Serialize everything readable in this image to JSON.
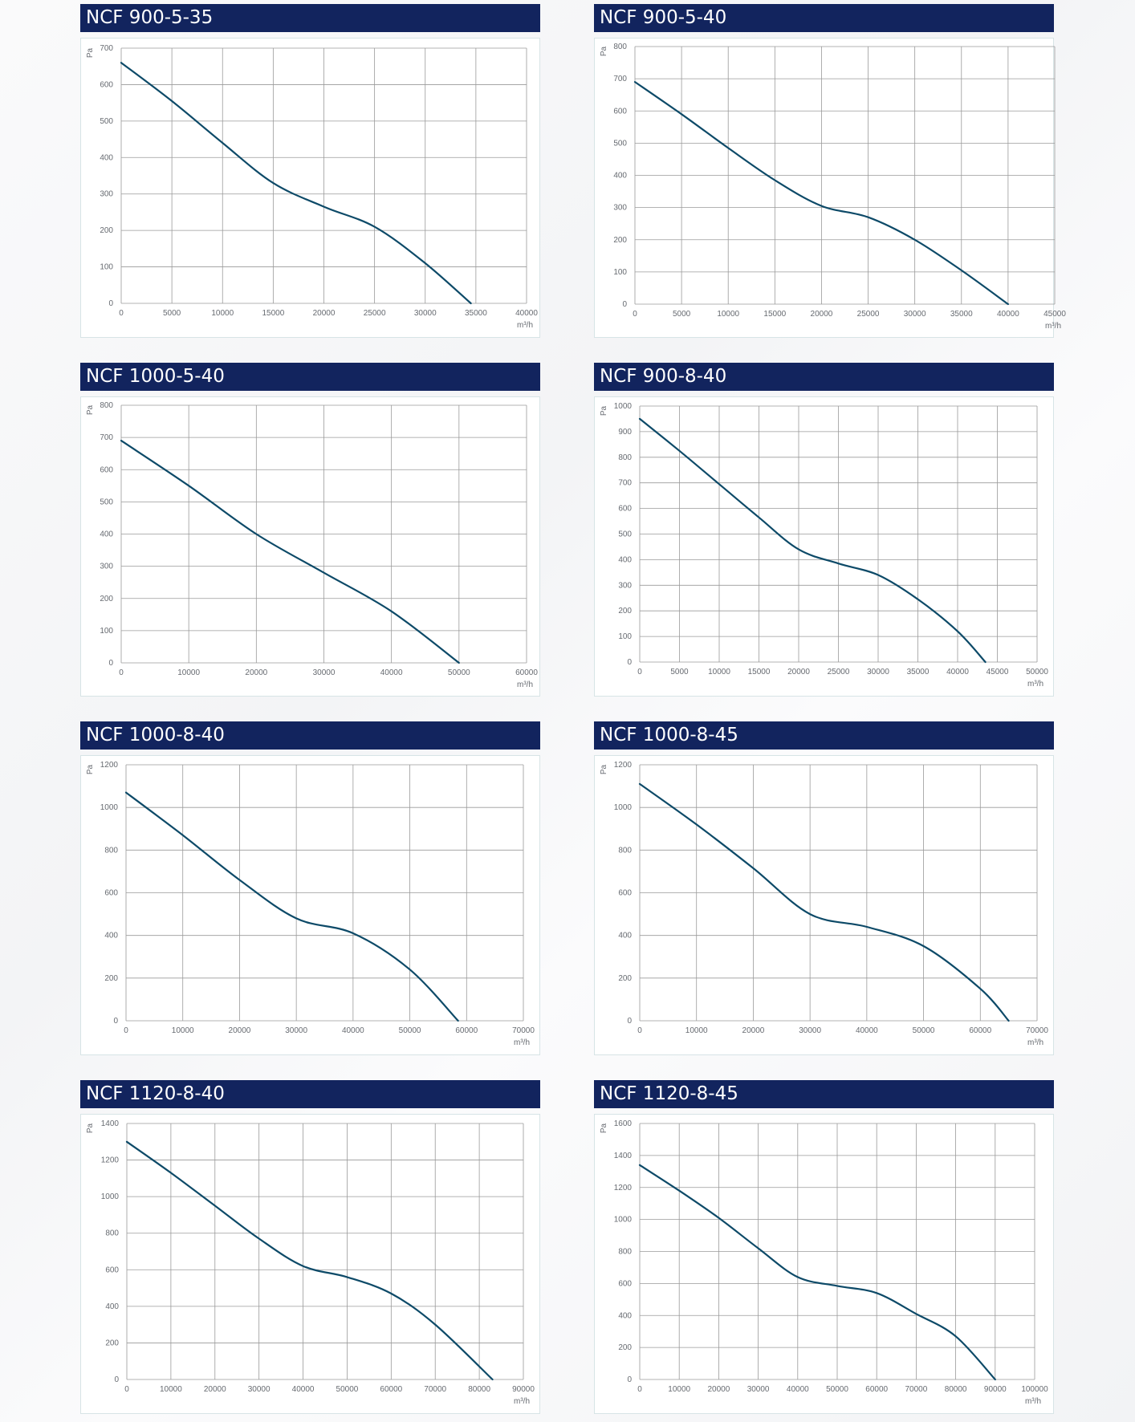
{
  "colors": {
    "header_bg": "#12245e",
    "curve": "#0d4a68",
    "grid": "#9a9a9a",
    "text": "#666a70"
  },
  "chart_data": [
    {
      "type": "line",
      "title": "NCF 900-5-35",
      "xlabel": "m³/h",
      "ylabel": "Pa",
      "xlim": [
        0,
        40000
      ],
      "ylim": [
        0,
        700
      ],
      "xticks": [
        0,
        5000,
        10000,
        15000,
        20000,
        25000,
        30000,
        35000,
        40000
      ],
      "yticks": [
        0,
        100,
        200,
        300,
        400,
        500,
        600,
        700
      ],
      "grid": true,
      "series": [
        {
          "x": [
            0,
            5000,
            10000,
            15000,
            20000,
            25000,
            30000,
            34500
          ],
          "y": [
            660,
            555,
            440,
            330,
            265,
            210,
            110,
            0
          ]
        }
      ]
    },
    {
      "type": "line",
      "title": "NCF 900-5-40",
      "xlabel": "m³/h",
      "ylabel": "Pa",
      "xlim": [
        0,
        45000
      ],
      "ylim": [
        0,
        800
      ],
      "xticks": [
        0,
        5000,
        10000,
        15000,
        20000,
        25000,
        30000,
        35000,
        40000,
        45000
      ],
      "yticks": [
        0,
        100,
        200,
        300,
        400,
        500,
        600,
        700,
        800
      ],
      "grid": true,
      "series": [
        {
          "x": [
            0,
            5000,
            10000,
            15000,
            20000,
            25000,
            30000,
            35000,
            40000
          ],
          "y": [
            690,
            590,
            485,
            385,
            305,
            270,
            200,
            105,
            0
          ]
        }
      ]
    },
    {
      "type": "line",
      "title": "NCF 1000-5-40",
      "xlabel": "m³/h",
      "ylabel": "Pa",
      "xlim": [
        0,
        60000
      ],
      "ylim": [
        0,
        800
      ],
      "xticks": [
        0,
        10000,
        20000,
        30000,
        40000,
        50000,
        60000
      ],
      "yticks": [
        0,
        100,
        200,
        300,
        400,
        500,
        600,
        700,
        800
      ],
      "grid": true,
      "series": [
        {
          "x": [
            0,
            10000,
            20000,
            30000,
            40000,
            50000
          ],
          "y": [
            690,
            550,
            400,
            280,
            160,
            0
          ]
        }
      ]
    },
    {
      "type": "line",
      "title": "NCF 900-8-40",
      "xlabel": "m³/h",
      "ylabel": "Pa",
      "xlim": [
        0,
        50000
      ],
      "ylim": [
        0,
        1000
      ],
      "xticks": [
        0,
        5000,
        10000,
        15000,
        20000,
        25000,
        30000,
        35000,
        40000,
        45000,
        50000
      ],
      "yticks": [
        0,
        100,
        200,
        300,
        400,
        500,
        600,
        700,
        800,
        900,
        1000
      ],
      "grid": true,
      "series": [
        {
          "x": [
            0,
            5000,
            10000,
            15000,
            20000,
            25000,
            30000,
            35000,
            40000,
            43500
          ],
          "y": [
            950,
            825,
            695,
            565,
            440,
            385,
            340,
            245,
            120,
            0
          ]
        }
      ]
    },
    {
      "type": "line",
      "title": "NCF 1000-8-40",
      "xlabel": "m³/h",
      "ylabel": "Pa",
      "xlim": [
        0,
        70000
      ],
      "ylim": [
        0,
        1200
      ],
      "xticks": [
        0,
        10000,
        20000,
        30000,
        40000,
        50000,
        60000,
        70000
      ],
      "yticks": [
        0,
        200,
        400,
        600,
        800,
        1000,
        1200
      ],
      "grid": true,
      "series": [
        {
          "x": [
            0,
            10000,
            20000,
            30000,
            40000,
            50000,
            58500
          ],
          "y": [
            1070,
            870,
            660,
            480,
            410,
            240,
            0
          ]
        }
      ]
    },
    {
      "type": "line",
      "title": "NCF 1000-8-45",
      "xlabel": "m³/h",
      "ylabel": "Pa",
      "xlim": [
        0,
        70000
      ],
      "ylim": [
        0,
        1200
      ],
      "xticks": [
        0,
        10000,
        20000,
        30000,
        40000,
        50000,
        60000,
        70000
      ],
      "yticks": [
        0,
        200,
        400,
        600,
        800,
        1000,
        1200
      ],
      "grid": true,
      "series": [
        {
          "x": [
            0,
            10000,
            20000,
            30000,
            40000,
            50000,
            60000,
            65000
          ],
          "y": [
            1110,
            920,
            715,
            500,
            440,
            350,
            150,
            0
          ]
        }
      ]
    },
    {
      "type": "line",
      "title": "NCF 1120-8-40",
      "xlabel": "m³/h",
      "ylabel": "Pa",
      "xlim": [
        0,
        90000
      ],
      "ylim": [
        0,
        1400
      ],
      "xticks": [
        0,
        10000,
        20000,
        30000,
        40000,
        50000,
        60000,
        70000,
        80000,
        90000
      ],
      "yticks": [
        0,
        200,
        400,
        600,
        800,
        1000,
        1200,
        1400
      ],
      "grid": true,
      "series": [
        {
          "x": [
            0,
            10000,
            20000,
            30000,
            40000,
            50000,
            60000,
            70000,
            83000
          ],
          "y": [
            1300,
            1130,
            950,
            770,
            620,
            560,
            470,
            300,
            0
          ]
        }
      ]
    },
    {
      "type": "line",
      "title": "NCF 1120-8-45",
      "xlabel": "m³/h",
      "ylabel": "Pa",
      "xlim": [
        0,
        100000
      ],
      "ylim": [
        0,
        1600
      ],
      "xticks": [
        0,
        10000,
        20000,
        30000,
        40000,
        50000,
        60000,
        70000,
        80000,
        90000,
        100000
      ],
      "yticks": [
        0,
        200,
        400,
        600,
        800,
        1000,
        1200,
        1400,
        1600
      ],
      "grid": true,
      "series": [
        {
          "x": [
            0,
            10000,
            20000,
            30000,
            40000,
            50000,
            60000,
            70000,
            80000,
            90000
          ],
          "y": [
            1340,
            1180,
            1010,
            820,
            640,
            585,
            540,
            410,
            270,
            0
          ]
        }
      ]
    }
  ]
}
